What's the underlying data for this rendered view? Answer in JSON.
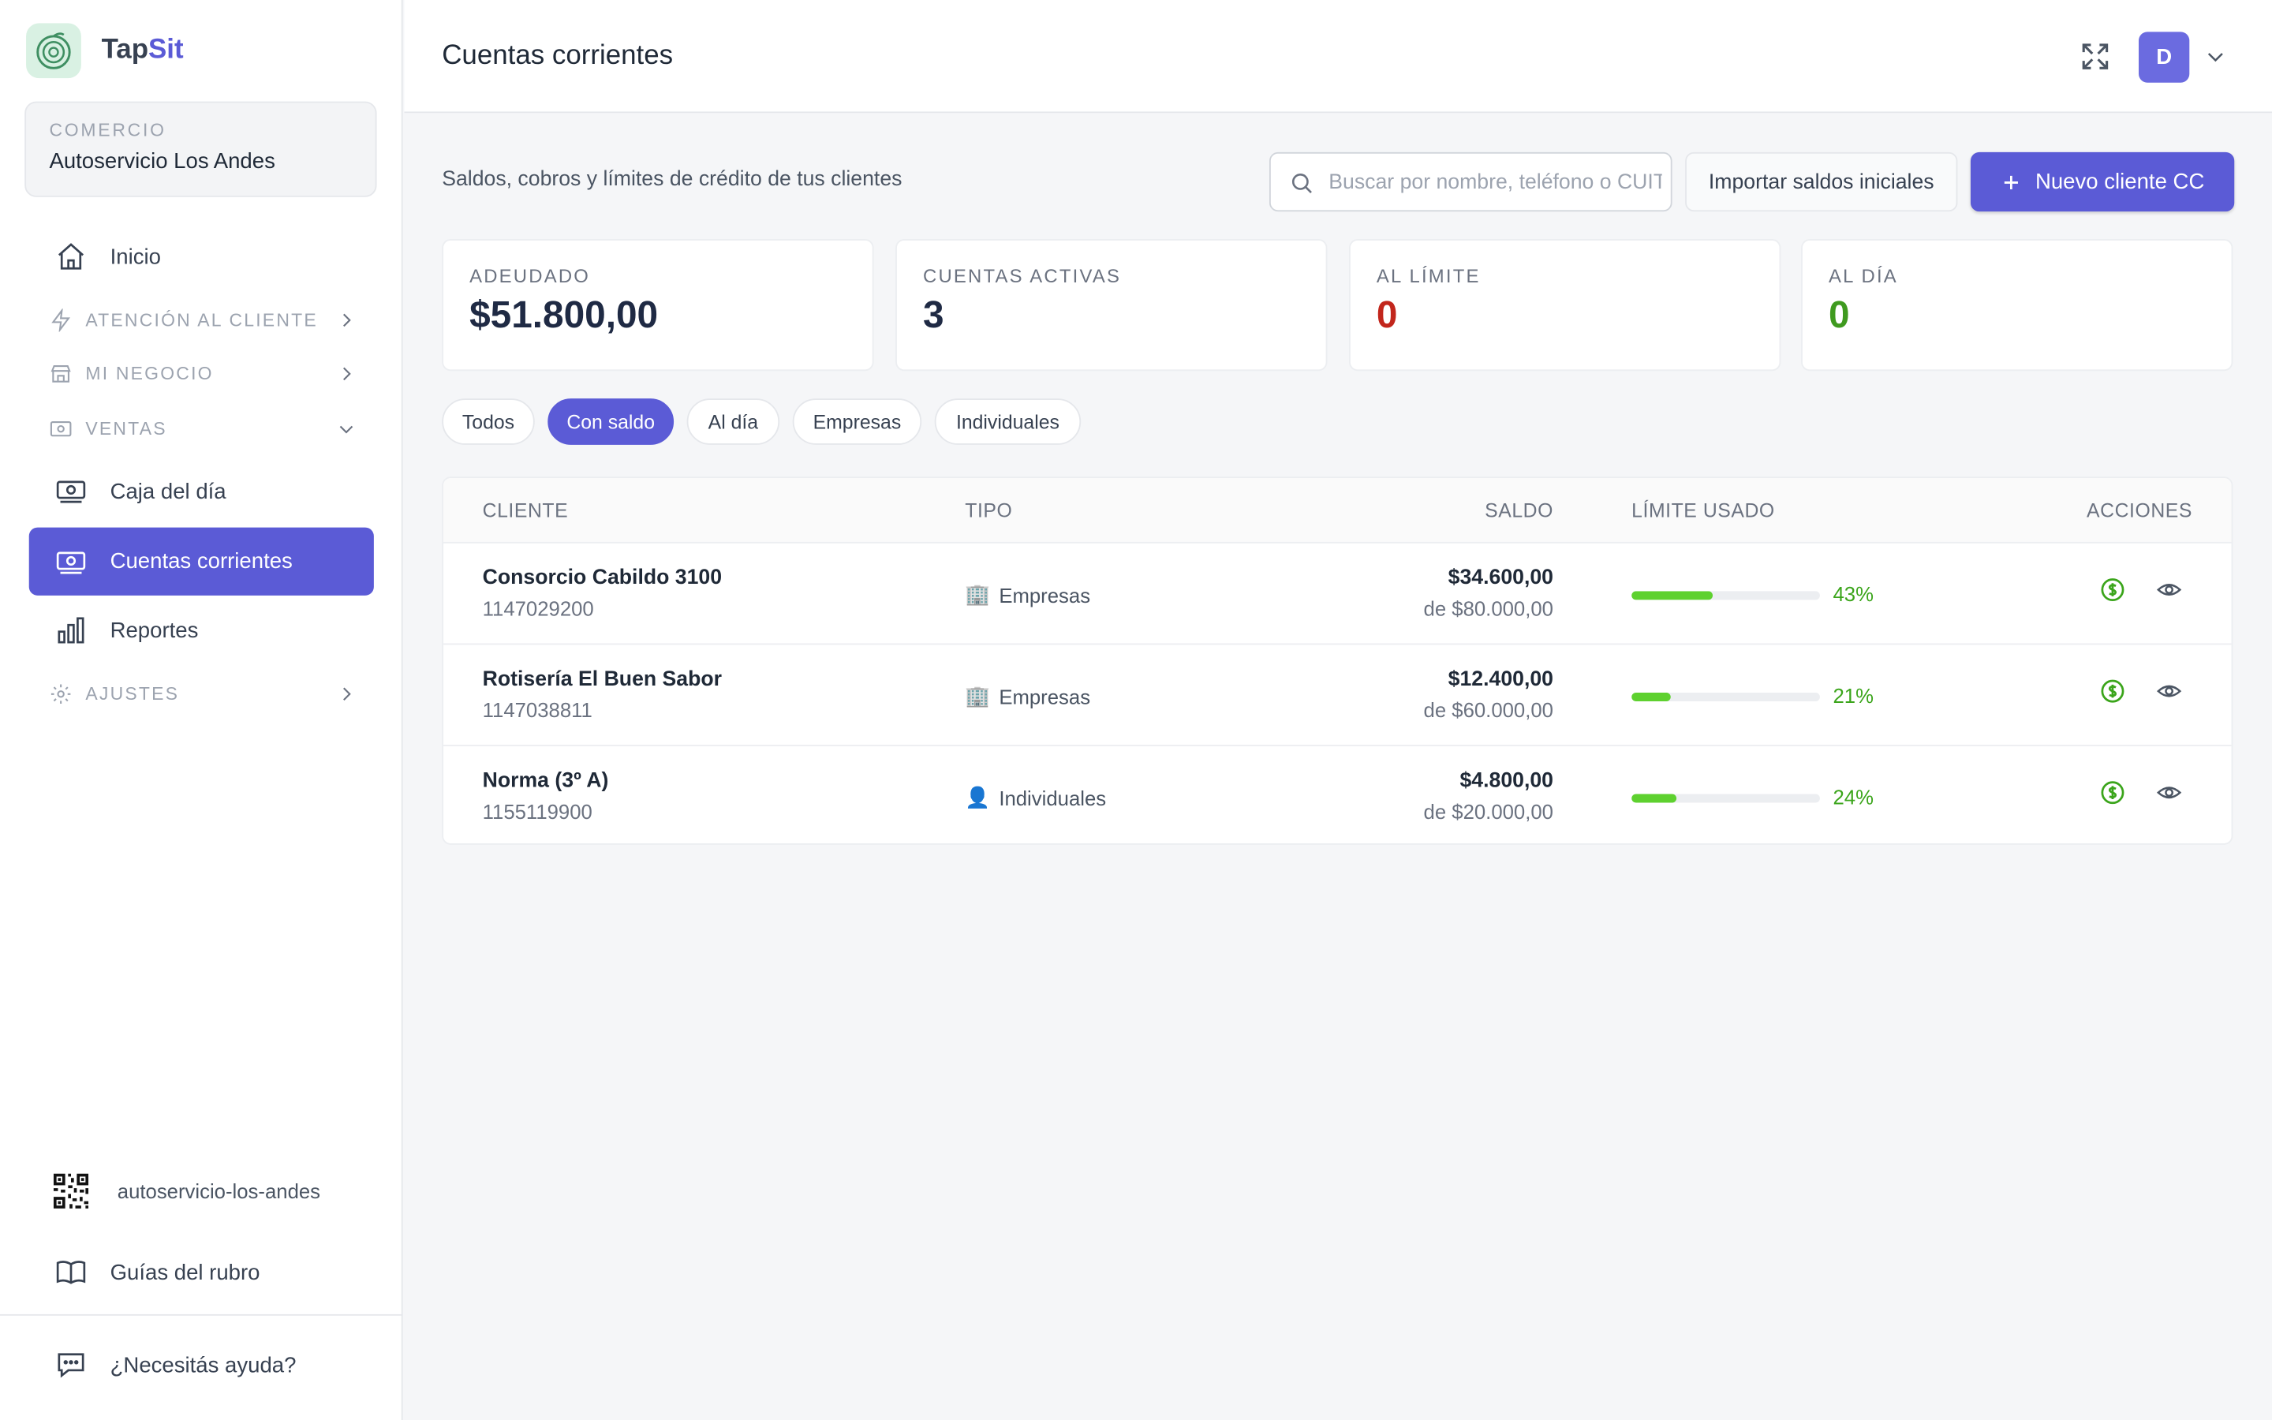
{
  "brand": {
    "name_part1": "Tap",
    "name_part2": "Sit",
    "accent_color": "#5b5bd6"
  },
  "store": {
    "label": "COMERCIO",
    "name": "Autoservicio Los Andes"
  },
  "sidebar": {
    "inicio": "Inicio",
    "sections": {
      "atencion": "ATENCIÓN AL CLIENTE",
      "negocio": "MI NEGOCIO",
      "ventas": "VENTAS",
      "ajustes": "AJUSTES"
    },
    "items": {
      "caja": "Caja del día",
      "cuentas": "Cuentas corrientes",
      "reportes": "Reportes"
    },
    "qr_slug": "autoservicio-los-andes",
    "guias": "Guías del rubro",
    "ayuda": "¿Necesitás ayuda?"
  },
  "header": {
    "title": "Cuentas corrientes",
    "avatar_letter": "D"
  },
  "toolbar": {
    "subtitle": "Saldos, cobros y límites de crédito de tus clientes",
    "search_placeholder": "Buscar por nombre, teléfono o CUIT",
    "import_label": "Importar saldos iniciales",
    "new_label": "Nuevo cliente CC"
  },
  "stats": [
    {
      "label": "ADEUDADO",
      "value": "$51.800,00",
      "color": "#1f2a44"
    },
    {
      "label": "CUENTAS ACTIVAS",
      "value": "3",
      "color": "#1f2a44"
    },
    {
      "label": "AL LÍMITE",
      "value": "0",
      "color": "#c2261c"
    },
    {
      "label": "AL DÍA",
      "value": "0",
      "color": "#3f9a1f"
    }
  ],
  "filters": [
    {
      "label": "Todos",
      "active": false
    },
    {
      "label": "Con saldo",
      "active": true
    },
    {
      "label": "Al día",
      "active": false
    },
    {
      "label": "Empresas",
      "active": false
    },
    {
      "label": "Individuales",
      "active": false
    }
  ],
  "table": {
    "headers": {
      "cliente": "CLIENTE",
      "tipo": "TIPO",
      "saldo": "SALDO",
      "limite": "LÍMITE USADO",
      "acciones": "ACCIONES"
    },
    "rows": [
      {
        "name": "Consorcio Cabildo 3100",
        "phone": "1147029200",
        "type_icon": "🏢",
        "type": "Empresas",
        "balance": "$34.600,00",
        "limit": "de $80.000,00",
        "used_fraction": 0.43,
        "pct": "43%"
      },
      {
        "name": "Rotisería El Buen Sabor",
        "phone": "1147038811",
        "type_icon": "🏢",
        "type": "Empresas",
        "balance": "$12.400,00",
        "limit": "de $60.000,00",
        "used_fraction": 0.21,
        "pct": "21%"
      },
      {
        "name": "Norma (3º A)",
        "phone": "1155119900",
        "type_icon": "👤",
        "type": "Individuales",
        "balance": "$4.800,00",
        "limit": "de $20.000,00",
        "used_fraction": 0.24,
        "pct": "24%"
      }
    ]
  }
}
